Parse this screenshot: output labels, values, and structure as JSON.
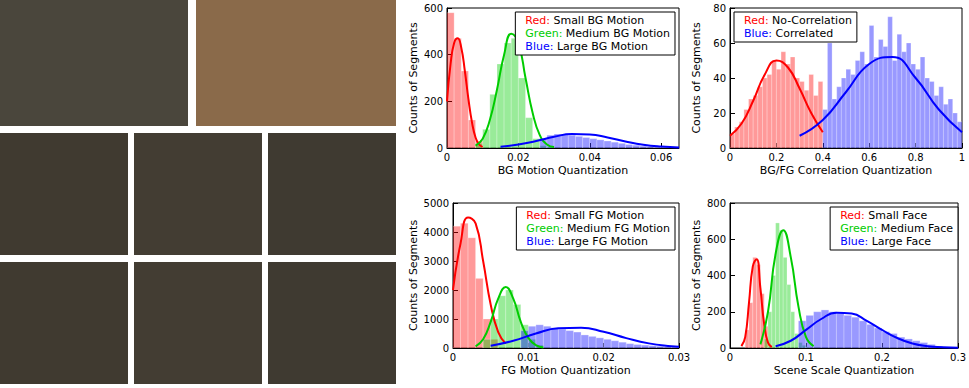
{
  "chart_data": [
    {
      "type": "histogram",
      "xlabel": "BG Motion Quantization",
      "ylabel": "Counts of Segments",
      "xlim": [
        0,
        0.065
      ],
      "ylim": [
        0,
        600
      ],
      "xticks": [
        0,
        0.02,
        0.04,
        0.06
      ],
      "yticks": [
        0,
        200,
        400,
        600
      ],
      "legend": "upper right",
      "series": [
        {
          "name": "Red: Small BG Motion",
          "color": "#ff0000",
          "bins": [
            0,
            0.002,
            0.004,
            0.006,
            0.008,
            0.01
          ],
          "counts": [
            580,
            470,
            330,
            120,
            30
          ],
          "curve": {
            "x": [
              0,
              0.001,
              0.002,
              0.003,
              0.004,
              0.005,
              0.006,
              0.007,
              0.008,
              0.009,
              0.01
            ],
            "y": [
              200,
              360,
              450,
              470,
              430,
              330,
              210,
              110,
              45,
              15,
              5
            ]
          }
        },
        {
          "name": "Green: Medium BG Motion",
          "color": "#00cc00",
          "bins": [
            0.008,
            0.01,
            0.012,
            0.014,
            0.016,
            0.018,
            0.02,
            0.022,
            0.024,
            0.026,
            0.028,
            0.03
          ],
          "counts": [
            20,
            80,
            230,
            360,
            450,
            470,
            300,
            130,
            40,
            10,
            5
          ],
          "curve": {
            "x": [
              0.008,
              0.01,
              0.012,
              0.014,
              0.016,
              0.018,
              0.02,
              0.022,
              0.024,
              0.026,
              0.028,
              0.03
            ],
            "y": [
              10,
              40,
              120,
              250,
              400,
              490,
              450,
              300,
              150,
              55,
              15,
              4
            ]
          }
        },
        {
          "name": "Blue: Large BG Motion",
          "color": "#0000ff",
          "bins": [
            0.026,
            0.028,
            0.03,
            0.032,
            0.034,
            0.036,
            0.038,
            0.04,
            0.042,
            0.044,
            0.046,
            0.048,
            0.05,
            0.052,
            0.054,
            0.056,
            0.058,
            0.06,
            0.062,
            0.064
          ],
          "counts": [
            40,
            55,
            60,
            60,
            55,
            50,
            45,
            40,
            35,
            30,
            25,
            20,
            15,
            12,
            8,
            6,
            4,
            3,
            2
          ],
          "curve": {
            "x": [
              0.015,
              0.02,
              0.025,
              0.03,
              0.035,
              0.04,
              0.045,
              0.05,
              0.055,
              0.06,
              0.065
            ],
            "y": [
              5,
              15,
              30,
              48,
              60,
              58,
              45,
              28,
              14,
              6,
              2
            ]
          }
        }
      ]
    },
    {
      "type": "histogram",
      "xlabel": "BG/FG Correlation Quantization",
      "ylabel": "Counts of Segments",
      "xlim": [
        0,
        1
      ],
      "ylim": [
        0,
        80
      ],
      "xticks": [
        0,
        0.2,
        0.4,
        0.6,
        0.8,
        1
      ],
      "yticks": [
        0,
        20,
        40,
        60,
        80
      ],
      "legend": "upper left",
      "series": [
        {
          "name": "Red: No-Correlation",
          "color": "#ff0000",
          "bins": [
            0,
            0.02,
            0.04,
            0.06,
            0.08,
            0.1,
            0.12,
            0.14,
            0.16,
            0.18,
            0.2,
            0.22,
            0.24,
            0.26,
            0.28,
            0.3,
            0.32,
            0.34,
            0.36,
            0.38,
            0.4
          ],
          "counts": [
            8,
            12,
            15,
            22,
            28,
            30,
            35,
            40,
            42,
            50,
            45,
            55,
            48,
            52,
            40,
            38,
            33,
            42,
            30,
            38
          ],
          "curve": {
            "x": [
              0,
              0.05,
              0.1,
              0.15,
              0.2,
              0.25,
              0.3,
              0.35,
              0.4
            ],
            "y": [
              7,
              14,
              27,
              42,
              50,
              46,
              34,
              20,
              9
            ]
          }
        },
        {
          "name": "Blue: Correlated",
          "color": "#0000ff",
          "bins": [
            0.4,
            0.42,
            0.44,
            0.46,
            0.48,
            0.5,
            0.52,
            0.54,
            0.56,
            0.58,
            0.6,
            0.62,
            0.64,
            0.66,
            0.68,
            0.7,
            0.72,
            0.74,
            0.76,
            0.78,
            0.8,
            0.82,
            0.84,
            0.86,
            0.88,
            0.9,
            0.92,
            0.94,
            0.96,
            0.98,
            1.0
          ],
          "counts": [
            22,
            60,
            28,
            35,
            40,
            45,
            42,
            50,
            55,
            48,
            70,
            52,
            62,
            58,
            75,
            50,
            65,
            55,
            60,
            48,
            45,
            52,
            40,
            38,
            30,
            35,
            25,
            28,
            20,
            15
          ],
          "curve": {
            "x": [
              0.3,
              0.4,
              0.5,
              0.6,
              0.7,
              0.8,
              0.9,
              1.0
            ],
            "y": [
              7,
              16,
              32,
              48,
              52,
              40,
              22,
              9
            ]
          }
        }
      ]
    },
    {
      "type": "histogram",
      "xlabel": "FG Motion Quantization",
      "ylabel": "Counts of Segments",
      "xlim": [
        0,
        0.03
      ],
      "ylim": [
        0,
        5000
      ],
      "xticks": [
        0,
        0.01,
        0.02,
        0.03
      ],
      "yticks": [
        0,
        1000,
        2000,
        3000,
        4000,
        5000
      ],
      "legend": "upper right",
      "series": [
        {
          "name": "Red: Small FG Motion",
          "color": "#ff0000",
          "bins": [
            0,
            0.001,
            0.002,
            0.003,
            0.004,
            0.005,
            0.006
          ],
          "counts": [
            4200,
            4300,
            3800,
            2400,
            1000,
            300
          ],
          "curve": {
            "x": [
              0,
              0.001,
              0.002,
              0.003,
              0.004,
              0.005,
              0.006,
              0.007
            ],
            "y": [
              2000,
              3600,
              4500,
              4300,
              3000,
              1500,
              550,
              150
            ]
          }
        },
        {
          "name": "Green: Medium FG Motion",
          "color": "#00cc00",
          "bins": [
            0.004,
            0.005,
            0.006,
            0.007,
            0.008,
            0.009,
            0.01,
            0.011,
            0.012
          ],
          "counts": [
            300,
            1000,
            1800,
            2000,
            1500,
            800,
            300,
            100
          ],
          "curve": {
            "x": [
              0.003,
              0.004,
              0.005,
              0.006,
              0.007,
              0.008,
              0.009,
              0.01,
              0.011,
              0.012
            ],
            "y": [
              60,
              300,
              900,
              1700,
              2100,
              1700,
              900,
              350,
              100,
              20
            ]
          }
        },
        {
          "name": "Blue: Large FG Motion",
          "color": "#0000ff",
          "bins": [
            0.009,
            0.01,
            0.011,
            0.012,
            0.013,
            0.014,
            0.015,
            0.016,
            0.017,
            0.018,
            0.019,
            0.02,
            0.021,
            0.022,
            0.023,
            0.024,
            0.025,
            0.026,
            0.027,
            0.028,
            0.029,
            0.03
          ],
          "counts": [
            600,
            750,
            800,
            750,
            700,
            650,
            600,
            550,
            450,
            400,
            350,
            300,
            250,
            200,
            150,
            120,
            100,
            80,
            60,
            40,
            30
          ],
          "curve": {
            "x": [
              0.005,
              0.008,
              0.011,
              0.014,
              0.017,
              0.02,
              0.023,
              0.026,
              0.029,
              0.03
            ],
            "y": [
              80,
              250,
              500,
              680,
              700,
              560,
              340,
              160,
              60,
              45
            ]
          }
        }
      ]
    },
    {
      "type": "histogram",
      "xlabel": "Scene Scale Quantization",
      "ylabel": "Counts of Segments",
      "xlim": [
        0,
        0.3
      ],
      "ylim": [
        0,
        800
      ],
      "xticks": [
        0,
        0.1,
        0.2,
        0.3
      ],
      "yticks": [
        0,
        200,
        400,
        600,
        800
      ],
      "legend": "upper right",
      "series": [
        {
          "name": "Red: Small Face",
          "color": "#ff0000",
          "bins": [
            0.02,
            0.025,
            0.03,
            0.035,
            0.04,
            0.045,
            0.05
          ],
          "counts": [
            100,
            250,
            500,
            460,
            300,
            120
          ],
          "curve": {
            "x": [
              0.015,
              0.02,
              0.025,
              0.03,
              0.035,
              0.04,
              0.045,
              0.05,
              0.055
            ],
            "y": [
              10,
              60,
              250,
              450,
              490,
              330,
              130,
              30,
              5
            ]
          }
        },
        {
          "name": "Green: Medium Face",
          "color": "#00cc00",
          "bins": [
            0.045,
            0.05,
            0.055,
            0.06,
            0.065,
            0.07,
            0.075,
            0.08,
            0.085,
            0.09,
            0.095,
            0.1,
            0.105
          ],
          "counts": [
            50,
            200,
            400,
            690,
            650,
            500,
            350,
            200,
            80,
            30,
            15,
            5
          ],
          "curve": {
            "x": [
              0.04,
              0.05,
              0.06,
              0.07,
              0.08,
              0.09,
              0.1,
              0.11
            ],
            "y": [
              20,
              200,
              520,
              650,
              500,
              230,
              60,
              10
            ]
          }
        },
        {
          "name": "Blue: Large Face",
          "color": "#0000ff",
          "bins": [
            0.09,
            0.1,
            0.11,
            0.12,
            0.13,
            0.14,
            0.15,
            0.16,
            0.17,
            0.18,
            0.19,
            0.2,
            0.21,
            0.22,
            0.23,
            0.24,
            0.25,
            0.26,
            0.27,
            0.28
          ],
          "counts": [
            150,
            180,
            200,
            210,
            200,
            190,
            180,
            170,
            150,
            130,
            110,
            90,
            80,
            60,
            50,
            40,
            30,
            20,
            10
          ],
          "curve": {
            "x": [
              0.06,
              0.08,
              0.1,
              0.12,
              0.14,
              0.16,
              0.18,
              0.2,
              0.22,
              0.24,
              0.26,
              0.28,
              0.3
            ],
            "y": [
              10,
              40,
              100,
              160,
              195,
              190,
              150,
              100,
              55,
              25,
              10,
              4,
              1
            ]
          }
        }
      ]
    }
  ]
}
